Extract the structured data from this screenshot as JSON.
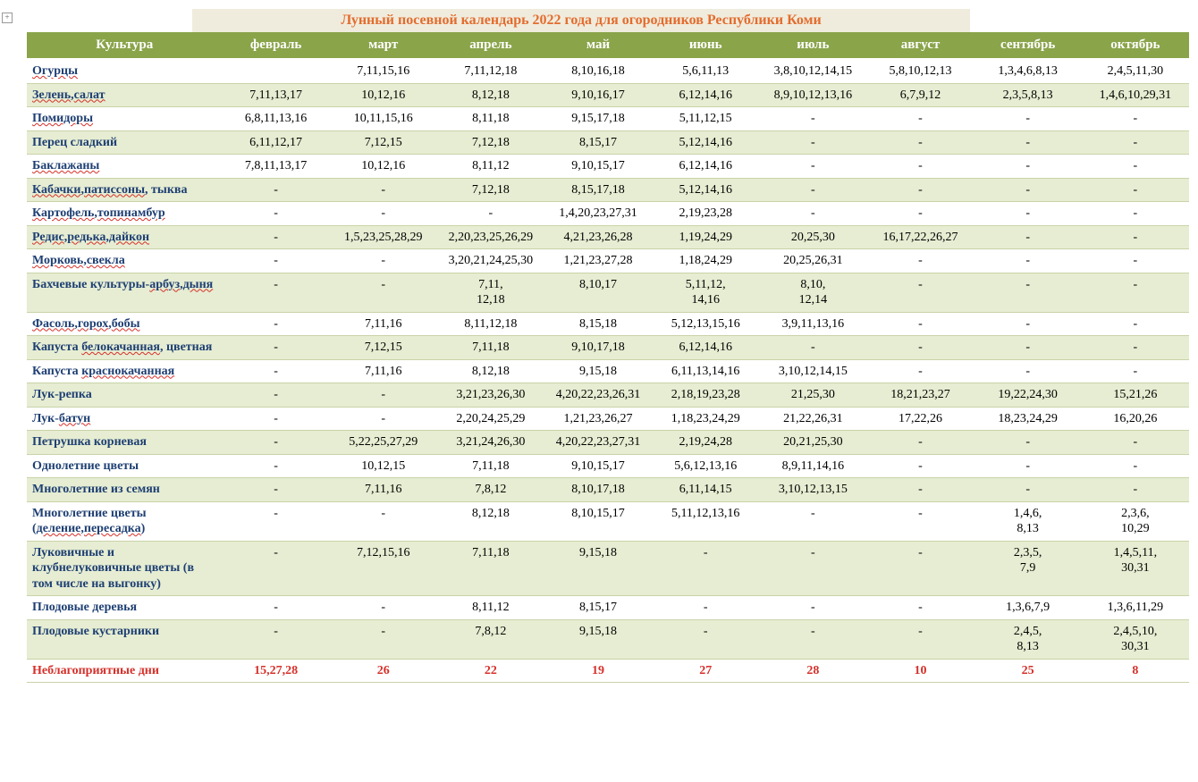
{
  "title": "Лунный посевной календарь 2022 года для огородников Республики Коми",
  "colors": {
    "header_bg": "#8aa44a",
    "header_text": "#ffffff",
    "title_bg": "#f0ecdd",
    "title_text": "#e36c2e",
    "crop_text": "#1e3f73",
    "row_even_bg": "#e6edd2",
    "row_odd_bg": "#ffffff",
    "bad_text": "#d6302a",
    "row_border": "#c9d3a7"
  },
  "columns": [
    "Культура",
    "февраль",
    "март",
    "апрель",
    "май",
    "июнь",
    "июль",
    "август",
    "сентябрь",
    "октябрь"
  ],
  "rows": [
    {
      "crop": "Огурцы",
      "under": [
        0
      ],
      "cells": [
        "",
        "7,11,15,16",
        "7,11,12,18",
        "8,10,16,18",
        "5,6,11,13",
        "3,8,10,12,14,15",
        "5,8,10,12,13",
        "1,3,4,6,8,13",
        "2,4,5,11,30"
      ]
    },
    {
      "crop": "Зелень,салат",
      "under": [
        0,
        1
      ],
      "cells": [
        "7,11,13,17",
        "10,12,16",
        "8,12,18",
        "9,10,16,17",
        "6,12,14,16",
        "8,9,10,12,13,16",
        "6,7,9,12",
        "2,3,5,8,13",
        "1,4,6,10,29,31"
      ]
    },
    {
      "crop": "Помидоры",
      "under": [
        0
      ],
      "cells": [
        "6,8,11,13,16",
        "10,11,15,16",
        "8,11,18",
        "9,15,17,18",
        "5,11,12,15",
        "-",
        "-",
        "-",
        "-"
      ]
    },
    {
      "crop": "Перец сладкий",
      "cells": [
        "6,11,12,17",
        "7,12,15",
        "7,12,18",
        "8,15,17",
        "5,12,14,16",
        "-",
        "-",
        "-",
        "-"
      ]
    },
    {
      "crop": "Баклажаны",
      "under": [
        0
      ],
      "cells": [
        "7,8,11,13,17",
        "10,12,16",
        "8,11,12",
        "9,10,15,17",
        "6,12,14,16",
        "-",
        "-",
        "-",
        "-"
      ]
    },
    {
      "crop": "Кабачки,патиссоны, тыква",
      "under": [
        0,
        1
      ],
      "cells": [
        "-",
        "-",
        "7,12,18",
        "8,15,17,18",
        "5,12,14,16",
        "-",
        "-",
        "-",
        "-"
      ]
    },
    {
      "crop": "Картофель,топинамбур",
      "under": [
        0,
        1
      ],
      "cells": [
        "-",
        "-",
        "-",
        "1,4,20,23,27,31",
        "2,19,23,28",
        "-",
        "-",
        "-",
        "-"
      ]
    },
    {
      "crop": "Редис,редька,дайкон",
      "under": [
        0,
        1,
        2
      ],
      "cells": [
        "-",
        "1,5,23,25,28,29",
        "2,20,23,25,26,29",
        "4,21,23,26,28",
        "1,19,24,29",
        "20,25,30",
        "16,17,22,26,27",
        "-",
        "-"
      ]
    },
    {
      "crop": "Морковь,свекла",
      "under": [
        0,
        1
      ],
      "cells": [
        "-",
        "-",
        "3,20,21,24,25,30",
        "1,21,23,27,28",
        "1,18,24,29",
        "20,25,26,31",
        "-",
        "-",
        "-"
      ]
    },
    {
      "crop": "Бахчевые культуры-арбуз,дыня",
      "under": [
        2,
        3
      ],
      "cells": [
        "-",
        "-",
        "7,11,\n12,18",
        "8,10,17",
        "5,11,12,\n14,16",
        "8,10,\n12,14",
        "-",
        "-",
        "-"
      ]
    },
    {
      "crop": "Фасоль,горох,бобы",
      "under": [
        0,
        1,
        2
      ],
      "cells": [
        "-",
        "7,11,16",
        "8,11,12,18",
        "8,15,18",
        "5,12,13,15,16",
        "3,9,11,13,16",
        "-",
        "-",
        "-"
      ]
    },
    {
      "crop": "Капуста белокачанная, цветная",
      "under": [
        1
      ],
      "cells": [
        "-",
        "7,12,15",
        "7,11,18",
        "9,10,17,18",
        "6,12,14,16",
        "-",
        "-",
        "-",
        "-"
      ]
    },
    {
      "crop": "Капуста краснокачанная",
      "under": [
        1
      ],
      "cells": [
        "-",
        "7,11,16",
        "8,12,18",
        "9,15,18",
        "6,11,13,14,16",
        "3,10,12,14,15",
        "-",
        "-",
        "-"
      ]
    },
    {
      "crop": "Лук-репка",
      "cells": [
        "-",
        "-",
        "3,21,23,26,30",
        "4,20,22,23,26,31",
        "2,18,19,23,28",
        "21,25,30",
        "18,21,23,27",
        "19,22,24,30",
        "15,21,26"
      ]
    },
    {
      "crop": "Лук-батун",
      "under": [
        1
      ],
      "cells": [
        "-",
        "-",
        "2,20,24,25,29",
        "1,21,23,26,27",
        "1,18,23,24,29",
        "21,22,26,31",
        "17,22,26",
        "18,23,24,29",
        "16,20,26"
      ]
    },
    {
      "crop": "Петрушка корневая",
      "cells": [
        "-",
        "5,22,25,27,29",
        "3,21,24,26,30",
        "4,20,22,23,27,31",
        "2,19,24,28",
        "20,21,25,30",
        "-",
        "-",
        "-"
      ]
    },
    {
      "crop": "Однолетние цветы",
      "cells": [
        "-",
        "10,12,15",
        "7,11,18",
        "9,10,15,17",
        "5,6,12,13,16",
        "8,9,11,14,16",
        "-",
        "-",
        "-"
      ]
    },
    {
      "crop": "Многолетние  из семян",
      "cells": [
        "-",
        "7,11,16",
        "7,8,12",
        "8,10,17,18",
        "6,11,14,15",
        "3,10,12,13,15",
        "-",
        "-",
        "-"
      ]
    },
    {
      "crop": "Многолетние цветы (деление,пересадка)",
      "under": [
        2,
        3
      ],
      "cells": [
        "-",
        "-",
        "8,12,18",
        "8,10,15,17",
        "5,11,12,13,16",
        "-",
        "-",
        "1,4,6,\n8,13",
        "2,3,6,\n10,29"
      ]
    },
    {
      "crop": "Луковичные и клубнелуковичные цветы (в том числе на выгонку)",
      "cells": [
        "-",
        "7,12,15,16",
        "7,11,18",
        "9,15,18",
        "-",
        "-",
        "-",
        "2,3,5,\n7,9",
        "1,4,5,11,\n30,31"
      ]
    },
    {
      "crop": "Плодовые деревья",
      "cells": [
        "-",
        "-",
        "8,11,12",
        "8,15,17",
        "-",
        "-",
        "-",
        "1,3,6,7,9",
        "1,3,6,11,29"
      ]
    },
    {
      "crop": "Плодовые кустарники",
      "cells": [
        "-",
        "-",
        "7,8,12",
        "9,15,18",
        "-",
        "-",
        "-",
        "2,4,5,\n8,13",
        "2,4,5,10,\n30,31"
      ]
    },
    {
      "crop": "Неблагоприятные дни",
      "bad": true,
      "cells": [
        "15,27,28",
        "26",
        "22",
        "19",
        "27",
        "28",
        "10",
        "25",
        "8"
      ]
    }
  ]
}
